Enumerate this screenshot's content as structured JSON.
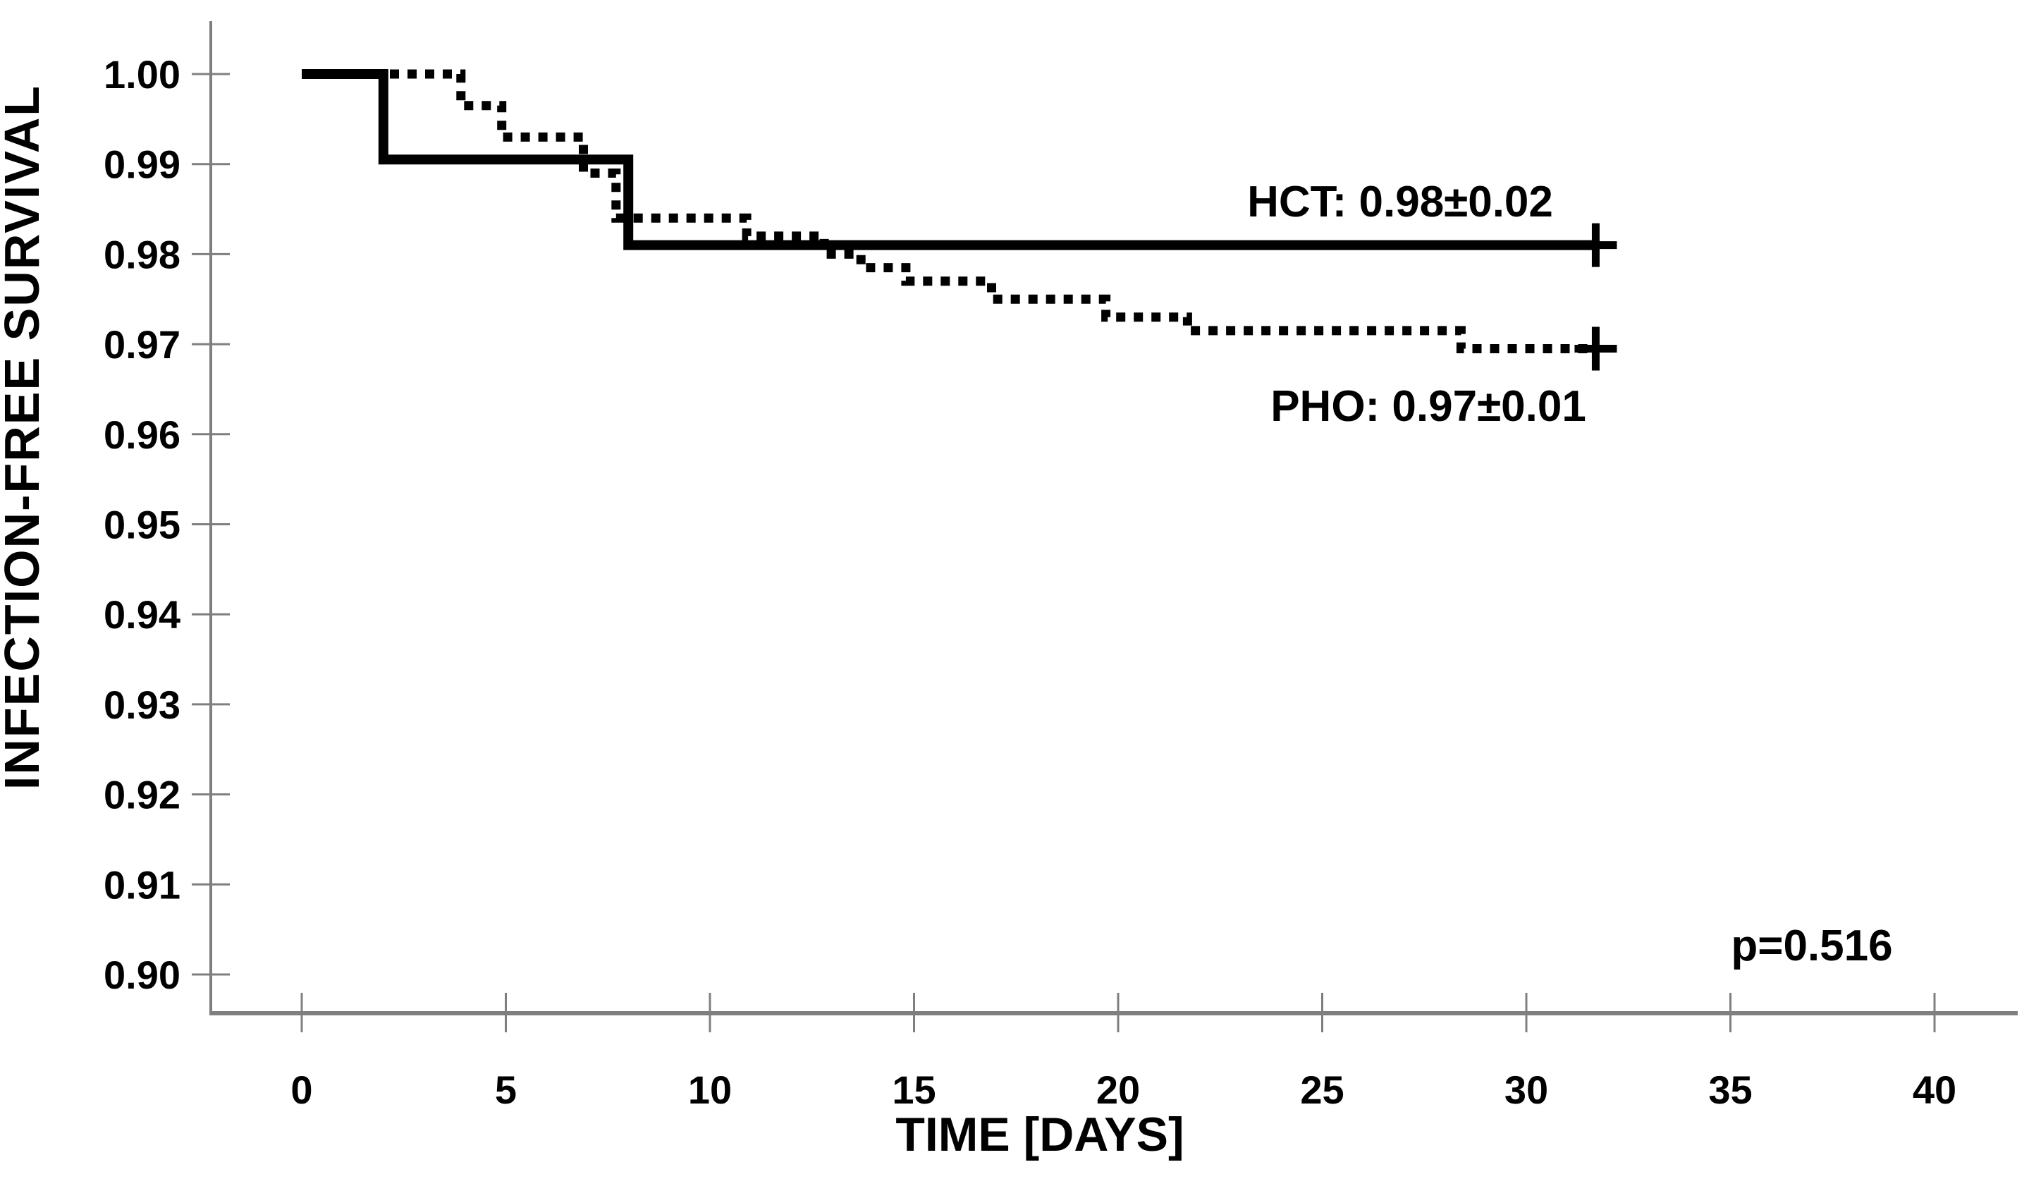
{
  "figure": {
    "background": "#ffffff",
    "axis_color": "#7f7f7f",
    "curve_color": "#000000",
    "text_color": "#000000"
  },
  "chart_data": {
    "type": "line",
    "subtype": "kaplan-meier-step",
    "title": "",
    "xlabel": "TIME [DAYS]",
    "ylabel": "INFECTION-FREE SURVIVAL",
    "xlim": [
      0,
      40
    ],
    "ylim": [
      0.9,
      1.0
    ],
    "grid": false,
    "legend_position": "none",
    "xticks": [
      0,
      5,
      10,
      15,
      20,
      25,
      30,
      35,
      40
    ],
    "yticks": [
      "1.00",
      "0.99",
      "0.98",
      "0.97",
      "0.96",
      "0.95",
      "0.94",
      "0.93",
      "0.92",
      "0.91",
      "0.90"
    ],
    "series": [
      {
        "name": "HCT",
        "style": "solid",
        "summary": "0.98±0.02",
        "censor_day": 31.7,
        "censor_value": 0.981,
        "steps": [
          [
            0,
            1.0
          ],
          [
            2,
            1.0
          ],
          [
            2,
            0.9905
          ],
          [
            8,
            0.9905
          ],
          [
            8,
            0.981
          ],
          [
            31.7,
            0.981
          ]
        ]
      },
      {
        "name": "PHO",
        "style": "dotted",
        "summary": "0.97±0.01",
        "censor_day": 31.7,
        "censor_value": 0.9695,
        "steps": [
          [
            0,
            1.0
          ],
          [
            3.9,
            1.0
          ],
          [
            3.9,
            0.9965
          ],
          [
            4.9,
            0.9965
          ],
          [
            4.9,
            0.993
          ],
          [
            6.9,
            0.993
          ],
          [
            6.9,
            0.989
          ],
          [
            7.7,
            0.989
          ],
          [
            7.7,
            0.984
          ],
          [
            10.9,
            0.984
          ],
          [
            10.9,
            0.982
          ],
          [
            12.8,
            0.982
          ],
          [
            12.8,
            0.98
          ],
          [
            13.7,
            0.98
          ],
          [
            13.7,
            0.9785
          ],
          [
            14.8,
            0.9785
          ],
          [
            14.8,
            0.977
          ],
          [
            16.9,
            0.977
          ],
          [
            16.9,
            0.975
          ],
          [
            19.7,
            0.975
          ],
          [
            19.7,
            0.973
          ],
          [
            21.7,
            0.973
          ],
          [
            21.7,
            0.9715
          ],
          [
            28.4,
            0.9715
          ],
          [
            28.4,
            0.9695
          ],
          [
            31.7,
            0.9695
          ]
        ]
      }
    ],
    "annotations": [
      {
        "text": "HCT: 0.98±0.02",
        "day": 26.9,
        "value": 0.9859
      },
      {
        "text": "PHO: 0.97±0.01",
        "day": 27.6,
        "value": 0.9632
      },
      {
        "text": "p=0.516",
        "day": 37.0,
        "value": 0.9033
      }
    ]
  }
}
